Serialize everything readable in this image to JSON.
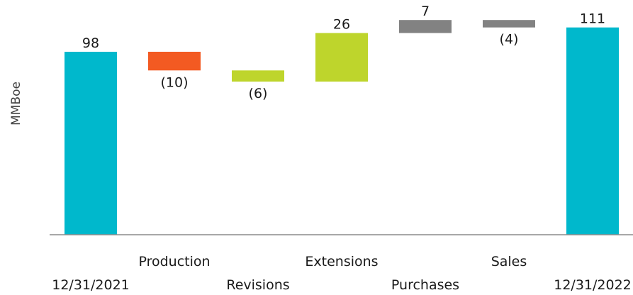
{
  "chart_data": {
    "type": "bar",
    "subtype": "waterfall",
    "title": "",
    "xlabel": "",
    "ylabel": "MMBoe",
    "categories": [
      "12/31/2021",
      "Production",
      "Revisions",
      "Extensions",
      "Purchases",
      "Sales",
      "12/31/2022"
    ],
    "values": [
      98,
      -10,
      -6,
      26,
      7,
      -4,
      111
    ],
    "value_labels": [
      "98",
      "(10)",
      "(6)",
      "26",
      "7",
      "(4)",
      "111"
    ],
    "bar_kinds": [
      "total",
      "delta",
      "delta",
      "delta",
      "delta",
      "delta",
      "total"
    ],
    "colors": [
      "#00b8cc",
      "#f35a22",
      "#bed52c",
      "#bed52c",
      "#828282",
      "#828282",
      "#00b8cc"
    ],
    "ylim": [
      0,
      120
    ],
    "grid": false,
    "legend": "none"
  }
}
